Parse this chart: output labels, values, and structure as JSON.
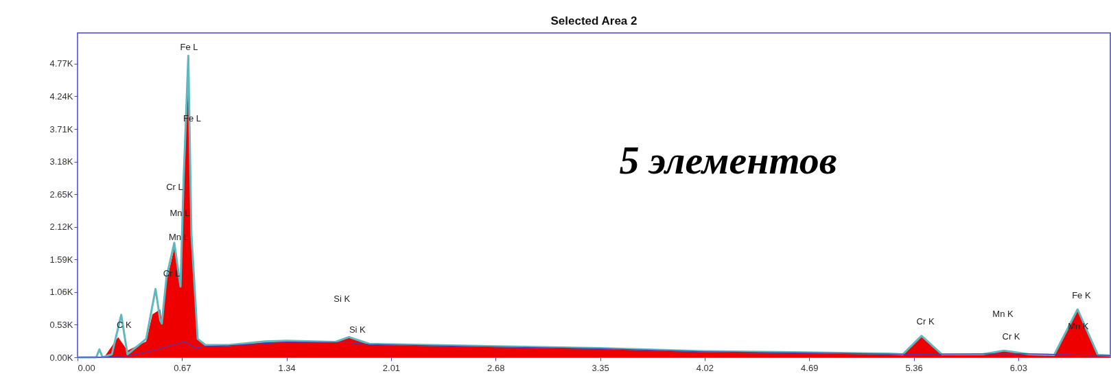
{
  "chart_data": {
    "type": "area",
    "title": "Selected Area 2",
    "xlim": [
      0,
      6.62
    ],
    "xticks": [
      {
        "value": 0,
        "label": "0.00"
      },
      {
        "value": 0.67,
        "label": "0.67"
      },
      {
        "value": 1.34,
        "label": "1.34"
      },
      {
        "value": 2.01,
        "label": "2.01"
      },
      {
        "value": 2.68,
        "label": "2.68"
      },
      {
        "value": 3.35,
        "label": "3.35"
      },
      {
        "value": 4.02,
        "label": "4.02"
      },
      {
        "value": 4.69,
        "label": "4.69"
      },
      {
        "value": 5.36,
        "label": "5.36"
      },
      {
        "value": 6.03,
        "label": "6.03"
      }
    ],
    "ylim": [
      0,
      5.27
    ],
    "yticks": [
      {
        "value": 0,
        "label": "0.00K"
      },
      {
        "value": 0.53,
        "label": "0.53K"
      },
      {
        "value": 1.06,
        "label": "1.06K"
      },
      {
        "value": 1.59,
        "label": "1.59K"
      },
      {
        "value": 2.12,
        "label": "2.12K"
      },
      {
        "value": 2.65,
        "label": "2.65K"
      },
      {
        "value": 3.18,
        "label": "3.18K"
      },
      {
        "value": 3.71,
        "label": "3.71K"
      },
      {
        "value": 4.24,
        "label": "4.24K"
      },
      {
        "value": 4.77,
        "label": "4.77K"
      }
    ],
    "grid": false,
    "marker": "none",
    "series": [
      {
        "color": "#ee0000",
        "x": [
          0.17,
          0.26,
          0.32,
          0.44,
          0.48,
          0.53,
          0.54,
          0.57,
          0.62,
          0.66,
          0.68,
          0.71,
          0.73,
          0.77,
          0.82,
          0.97,
          1.2,
          1.34,
          1.65,
          1.74,
          1.87,
          2.68,
          3.35,
          4.02,
          4.69,
          5.2,
          5.29,
          5.41,
          5.54,
          5.8,
          5.94,
          6.1,
          6.26,
          6.41,
          6.54,
          6.62
        ],
        "values": [
          0,
          0.33,
          0.11,
          0.26,
          0.7,
          0.78,
          0.59,
          1.22,
          1.78,
          1.15,
          2.82,
          4.49,
          2.0,
          0.3,
          0.19,
          0.19,
          0.25,
          0.26,
          0.24,
          0.33,
          0.21,
          0.17,
          0.14,
          0.09,
          0.07,
          0.06,
          0.05,
          0.35,
          0.05,
          0.05,
          0.11,
          0.05,
          0.04,
          0.78,
          0.04,
          0.03
        ]
      },
      {
        "type": "line",
        "color": "#5fb8c0",
        "x": [
          0,
          0.12,
          0.14,
          0.16,
          0.22,
          0.28,
          0.32,
          0.44,
          0.5,
          0.53,
          0.54,
          0.57,
          0.62,
          0.66,
          0.68,
          0.71,
          0.73,
          0.77,
          0.82,
          0.97,
          1.2,
          1.34,
          1.65,
          1.74,
          1.87,
          2.68,
          3.35,
          4.02,
          4.69,
          5.2,
          5.29,
          5.41,
          5.54,
          5.8,
          5.94,
          6.1,
          6.26,
          6.41,
          6.54,
          6.62
        ],
        "values": [
          0,
          0,
          0.13,
          0,
          0.05,
          0.69,
          0.05,
          0.3,
          1.11,
          0.6,
          0.55,
          1.3,
          1.86,
          1.15,
          2.9,
          4.9,
          2.0,
          0.3,
          0.2,
          0.2,
          0.26,
          0.27,
          0.25,
          0.33,
          0.22,
          0.18,
          0.15,
          0.1,
          0.08,
          0.06,
          0.05,
          0.35,
          0.05,
          0.05,
          0.11,
          0.05,
          0.04,
          0.78,
          0.04,
          0.03
        ]
      },
      {
        "type": "line",
        "color": "#4a3ab0",
        "x": [
          0,
          0.3,
          0.5,
          0.69,
          0.75,
          0.82,
          0.97,
          1.34,
          1.65,
          1.74,
          1.87,
          2.68,
          3.35,
          4.02,
          4.69,
          5.36,
          6.03,
          6.62
        ],
        "values": [
          0,
          0.01,
          0.12,
          0.26,
          0.15,
          0.18,
          0.19,
          0.25,
          0.24,
          0.24,
          0.21,
          0.17,
          0.14,
          0.09,
          0.07,
          0.05,
          0.06,
          0.03
        ]
      }
    ],
    "annotations": [
      "Fe L",
      "Fe L",
      "Cr L",
      "Mn L",
      "Mn L",
      "Cr L",
      "C K",
      "Si K",
      "Si K",
      "Cr K",
      "Mn K",
      "Cr K",
      "Fe K",
      "Mn K",
      "5 элементов"
    ]
  }
}
